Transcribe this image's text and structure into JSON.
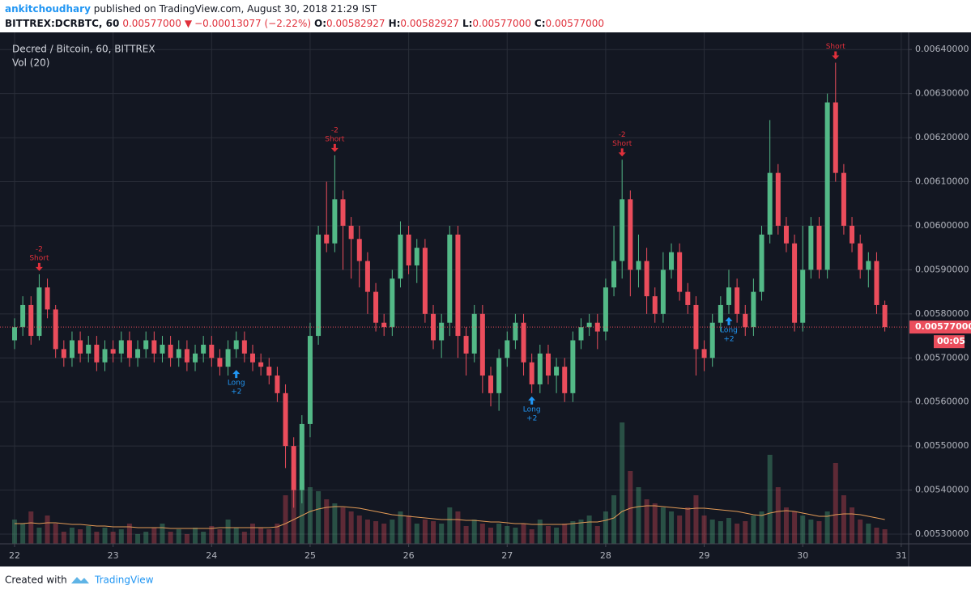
{
  "page": {
    "author": "ankitchoudhary",
    "published": " published on TradingView.com, August 30, 2018 21:29 IST",
    "symbol": "BITTREX:DCRBTC, 60",
    "last": "0.00577000",
    "change_arrow": "▼",
    "change": "−0.00013077 (−2.22%)",
    "ohlc": [
      {
        "label": "O:",
        "value": "0.00582927"
      },
      {
        "label": "H:",
        "value": "0.00582927"
      },
      {
        "label": "L:",
        "value": "0.00577000"
      },
      {
        "label": "C:",
        "value": "0.00577000"
      }
    ],
    "footer_text": "Created with",
    "footer_brand": "TradingView"
  },
  "chart_data": {
    "type": "candlestick",
    "title": "Decred / Bitcoin, 60, BITTREX",
    "volume_label": "Vol (20)",
    "background": "#131722",
    "grid": true,
    "grid_color": "#2a2e39",
    "up_color": "#53b987",
    "down_color": "#eb4d5c",
    "volume_ma_color": "#e39b57",
    "xlim": [
      -3.55,
      217.8
    ],
    "xticks": [
      {
        "value": 0,
        "label": "22"
      },
      {
        "value": 24,
        "label": "23"
      },
      {
        "value": 48,
        "label": "24"
      },
      {
        "value": 72,
        "label": "25"
      },
      {
        "value": 96,
        "label": "26"
      },
      {
        "value": 120,
        "label": "27"
      },
      {
        "value": 144,
        "label": "28"
      },
      {
        "value": 168,
        "label": "29"
      },
      {
        "value": 192,
        "label": "30"
      },
      {
        "value": 216,
        "label": "31"
      }
    ],
    "ylim": [
      0.005278,
      0.006439
    ],
    "yticks": [
      {
        "value": 0.0053,
        "label": "0.00530000"
      },
      {
        "value": 0.0054,
        "label": "0.00540000"
      },
      {
        "value": 0.0055,
        "label": "0.00550000"
      },
      {
        "value": 0.0056,
        "label": "0.00560000"
      },
      {
        "value": 0.0057,
        "label": "0.00570000"
      },
      {
        "value": 0.0058,
        "label": "0.00580000"
      },
      {
        "value": 0.0059,
        "label": "0.00590000"
      },
      {
        "value": 0.006,
        "label": "0.00600000"
      },
      {
        "value": 0.0061,
        "label": "0.00610000"
      },
      {
        "value": 0.0062,
        "label": "0.00620000"
      },
      {
        "value": 0.0063,
        "label": "0.00630000"
      },
      {
        "value": 0.0064,
        "label": "0.00640000"
      }
    ],
    "last_price": 0.00577,
    "last_price_label": "0.00577000",
    "countdown": "00:05",
    "x": [
      0,
      2,
      4,
      6,
      8,
      10,
      12,
      14,
      16,
      18,
      20,
      22,
      24,
      26,
      28,
      30,
      32,
      34,
      36,
      38,
      40,
      42,
      44,
      46,
      48,
      50,
      52,
      54,
      56,
      58,
      60,
      62,
      64,
      66,
      68,
      70,
      72,
      74,
      76,
      78,
      80,
      82,
      84,
      86,
      88,
      90,
      92,
      94,
      96,
      98,
      100,
      102,
      104,
      106,
      108,
      110,
      112,
      114,
      116,
      118,
      120,
      122,
      124,
      126,
      128,
      130,
      132,
      134,
      136,
      138,
      140,
      142,
      144,
      146,
      148,
      150,
      152,
      154,
      156,
      158,
      160,
      162,
      164,
      166,
      168,
      170,
      172,
      174,
      176,
      178,
      180,
      182,
      184,
      186,
      188,
      190,
      192,
      194,
      196,
      198,
      200,
      202,
      204,
      206,
      208,
      210,
      212
    ],
    "open": [
      0.00574,
      0.00577,
      0.00582,
      0.00575,
      0.00586,
      0.00581,
      0.00572,
      0.0057,
      0.00574,
      0.00571,
      0.00573,
      0.00569,
      0.00572,
      0.00571,
      0.00574,
      0.0057,
      0.00572,
      0.00574,
      0.00571,
      0.00573,
      0.0057,
      0.00572,
      0.00569,
      0.00571,
      0.00573,
      0.0057,
      0.00568,
      0.00572,
      0.00574,
      0.00571,
      0.00569,
      0.00568,
      0.00566,
      0.00562,
      0.0055,
      0.0054,
      0.00555,
      0.00575,
      0.00598,
      0.00596,
      0.00606,
      0.006,
      0.00597,
      0.00592,
      0.00585,
      0.00578,
      0.00577,
      0.00588,
      0.00598,
      0.00591,
      0.00595,
      0.0058,
      0.00574,
      0.00578,
      0.00598,
      0.00575,
      0.00571,
      0.0058,
      0.00566,
      0.00562,
      0.0057,
      0.00574,
      0.00578,
      0.00569,
      0.00564,
      0.00571,
      0.00566,
      0.00568,
      0.00562,
      0.00574,
      0.00577,
      0.00578,
      0.00576,
      0.00586,
      0.00592,
      0.00606,
      0.0059,
      0.00592,
      0.00584,
      0.0058,
      0.0059,
      0.00594,
      0.00585,
      0.00582,
      0.00572,
      0.0057,
      0.00578,
      0.00582,
      0.00586,
      0.0058,
      0.00577,
      0.00585,
      0.00598,
      0.00612,
      0.006,
      0.00596,
      0.00578,
      0.0059,
      0.006,
      0.0059,
      0.00628,
      0.00612,
      0.006,
      0.00596,
      0.0059,
      0.00592,
      0.00582
    ],
    "high": [
      0.00579,
      0.00584,
      0.00584,
      0.00589,
      0.00588,
      0.00582,
      0.00574,
      0.00576,
      0.00576,
      0.00575,
      0.00575,
      0.00574,
      0.00574,
      0.00576,
      0.00576,
      0.00574,
      0.00576,
      0.00576,
      0.00575,
      0.00575,
      0.00574,
      0.00574,
      0.00573,
      0.00575,
      0.00575,
      0.00572,
      0.00574,
      0.00576,
      0.00576,
      0.00573,
      0.00571,
      0.0057,
      0.00568,
      0.00564,
      0.00552,
      0.00557,
      0.00578,
      0.006,
      0.0061,
      0.00616,
      0.00608,
      0.00602,
      0.006,
      0.00594,
      0.00587,
      0.0058,
      0.0059,
      0.00601,
      0.006,
      0.00597,
      0.00597,
      0.00582,
      0.0058,
      0.006,
      0.006,
      0.00577,
      0.00582,
      0.00582,
      0.00568,
      0.00572,
      0.00576,
      0.0058,
      0.0058,
      0.00571,
      0.00573,
      0.00573,
      0.0057,
      0.0057,
      0.00576,
      0.00579,
      0.0058,
      0.0058,
      0.00588,
      0.006,
      0.00615,
      0.00608,
      0.00598,
      0.00595,
      0.00586,
      0.00594,
      0.00596,
      0.00596,
      0.00587,
      0.00584,
      0.00574,
      0.0058,
      0.00584,
      0.0059,
      0.00588,
      0.00582,
      0.00588,
      0.006,
      0.00624,
      0.00614,
      0.00602,
      0.00598,
      0.006,
      0.00602,
      0.00602,
      0.0063,
      0.00637,
      0.00614,
      0.00602,
      0.00598,
      0.00594,
      0.00594,
      0.00583
    ],
    "low": [
      0.00572,
      0.00575,
      0.00573,
      0.00574,
      0.00579,
      0.0057,
      0.00568,
      0.00568,
      0.00569,
      0.00569,
      0.00567,
      0.00567,
      0.00569,
      0.00569,
      0.00568,
      0.00568,
      0.0057,
      0.00569,
      0.00569,
      0.00568,
      0.00568,
      0.00567,
      0.00567,
      0.00569,
      0.00568,
      0.00566,
      0.00566,
      0.0057,
      0.00569,
      0.00567,
      0.00566,
      0.00564,
      0.0056,
      0.00545,
      0.00536,
      0.00537,
      0.00552,
      0.00573,
      0.00594,
      0.00594,
      0.0059,
      0.00588,
      0.00586,
      0.0058,
      0.00576,
      0.00575,
      0.00575,
      0.00586,
      0.00589,
      0.00587,
      0.00578,
      0.00572,
      0.0057,
      0.00575,
      0.0057,
      0.00566,
      0.00569,
      0.00562,
      0.00559,
      0.00558,
      0.00568,
      0.00572,
      0.00566,
      0.00562,
      0.00562,
      0.00564,
      0.00562,
      0.0056,
      0.0056,
      0.00572,
      0.00575,
      0.00572,
      0.00574,
      0.00584,
      0.00588,
      0.00584,
      0.00586,
      0.0058,
      0.00578,
      0.00578,
      0.00588,
      0.00583,
      0.0058,
      0.00566,
      0.00567,
      0.00568,
      0.00576,
      0.0058,
      0.00578,
      0.00575,
      0.00575,
      0.00583,
      0.00596,
      0.00598,
      0.00594,
      0.00576,
      0.00576,
      0.00588,
      0.00588,
      0.00588,
      0.0061,
      0.00598,
      0.00594,
      0.00588,
      0.00586,
      0.0058,
      0.00576
    ],
    "close": [
      0.00577,
      0.00582,
      0.00575,
      0.00586,
      0.00581,
      0.00572,
      0.0057,
      0.00574,
      0.00571,
      0.00573,
      0.00569,
      0.00572,
      0.00571,
      0.00574,
      0.0057,
      0.00572,
      0.00574,
      0.00571,
      0.00573,
      0.0057,
      0.00572,
      0.00569,
      0.00571,
      0.00573,
      0.0057,
      0.00568,
      0.00572,
      0.00574,
      0.00571,
      0.00569,
      0.00568,
      0.00566,
      0.00562,
      0.0055,
      0.0054,
      0.00555,
      0.00575,
      0.00598,
      0.00596,
      0.00606,
      0.006,
      0.00597,
      0.00592,
      0.00585,
      0.00578,
      0.00577,
      0.00588,
      0.00598,
      0.00591,
      0.00595,
      0.0058,
      0.00574,
      0.00578,
      0.00598,
      0.00575,
      0.00571,
      0.0058,
      0.00566,
      0.00562,
      0.0057,
      0.00574,
      0.00578,
      0.00569,
      0.00564,
      0.00571,
      0.00566,
      0.00568,
      0.00562,
      0.00574,
      0.00577,
      0.00578,
      0.00576,
      0.00586,
      0.00592,
      0.00606,
      0.0059,
      0.00592,
      0.00584,
      0.0058,
      0.0059,
      0.00594,
      0.00585,
      0.00582,
      0.00572,
      0.0057,
      0.00578,
      0.00582,
      0.00586,
      0.0058,
      0.00577,
      0.00585,
      0.00598,
      0.00612,
      0.006,
      0.00596,
      0.00578,
      0.0059,
      0.006,
      0.0059,
      0.00628,
      0.00612,
      0.006,
      0.00596,
      0.0059,
      0.00592,
      0.00582,
      0.00577
    ],
    "volume": [
      30,
      25,
      40,
      20,
      35,
      25,
      15,
      20,
      18,
      22,
      15,
      20,
      15,
      18,
      25,
      12,
      15,
      20,
      25,
      15,
      18,
      12,
      20,
      15,
      22,
      18,
      30,
      20,
      15,
      25,
      20,
      18,
      25,
      60,
      95,
      80,
      70,
      65,
      55,
      50,
      45,
      40,
      35,
      30,
      28,
      25,
      30,
      40,
      35,
      25,
      30,
      28,
      25,
      45,
      40,
      22,
      30,
      25,
      20,
      25,
      22,
      20,
      25,
      18,
      30,
      22,
      20,
      25,
      28,
      30,
      35,
      22,
      40,
      60,
      150,
      90,
      70,
      55,
      50,
      45,
      40,
      35,
      45,
      60,
      35,
      30,
      28,
      32,
      25,
      28,
      35,
      40,
      110,
      70,
      45,
      40,
      35,
      30,
      28,
      40,
      100,
      60,
      45,
      30,
      25,
      20,
      18
    ],
    "volume_ma": [
      25,
      25,
      26,
      25,
      26,
      26,
      25,
      24,
      24,
      23,
      22,
      22,
      21,
      21,
      21,
      20,
      20,
      20,
      20,
      19,
      19,
      19,
      19,
      19,
      19,
      20,
      20,
      20,
      20,
      20,
      20,
      20,
      21,
      25,
      30,
      35,
      40,
      43,
      45,
      46,
      46,
      45,
      44,
      42,
      40,
      38,
      36,
      35,
      34,
      33,
      32,
      31,
      30,
      30,
      30,
      29,
      29,
      28,
      27,
      27,
      26,
      25,
      25,
      24,
      24,
      24,
      24,
      24,
      25,
      26,
      27,
      27,
      29,
      32,
      40,
      44,
      46,
      47,
      47,
      46,
      45,
      44,
      43,
      44,
      44,
      43,
      42,
      41,
      40,
      38,
      36,
      35,
      38,
      40,
      41,
      40,
      38,
      36,
      34,
      34,
      36,
      37,
      37,
      36,
      34,
      32,
      30
    ],
    "signals": [
      {
        "x": 6,
        "price": 0.00589,
        "side": "short",
        "text": [
          "-2",
          "Short"
        ]
      },
      {
        "x": 54,
        "price": 0.00568,
        "side": "long",
        "text": [
          "Long",
          "+2"
        ]
      },
      {
        "x": 78,
        "price": 0.00616,
        "side": "short",
        "text": [
          "-2",
          "Short"
        ]
      },
      {
        "x": 126,
        "price": 0.00562,
        "side": "long",
        "text": [
          "Long",
          "+2"
        ]
      },
      {
        "x": 148,
        "price": 0.00615,
        "side": "short",
        "text": [
          "-2",
          "Short"
        ]
      },
      {
        "x": 174,
        "price": 0.0058,
        "side": "long",
        "text": [
          "Long",
          "+2"
        ]
      },
      {
        "x": 200,
        "price": 0.00637,
        "side": "short",
        "text": [
          "Short"
        ]
      }
    ]
  }
}
